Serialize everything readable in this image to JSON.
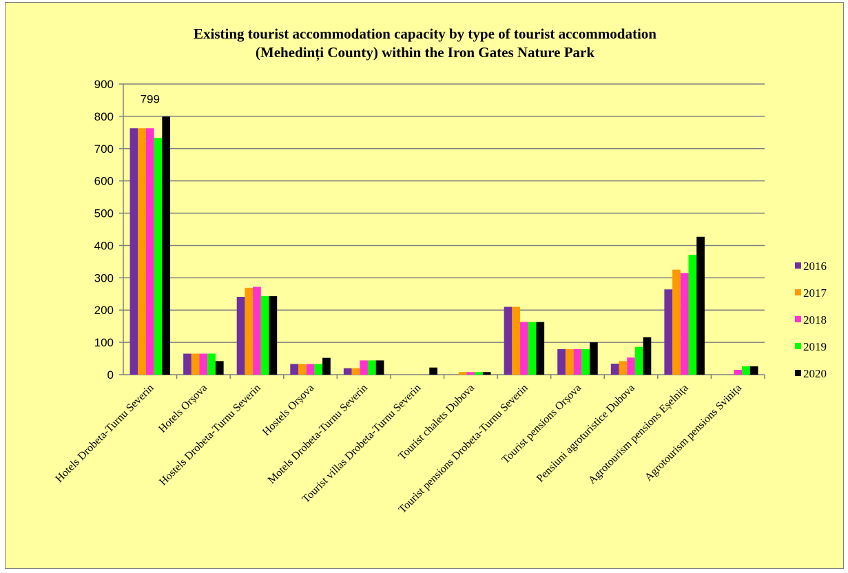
{
  "chart_data": {
    "type": "bar",
    "title_lines": [
      "Existing tourist accommodation capacity by type of tourist accommodation",
      "(Mehedinți County) within the Iron Gates Nature Park"
    ],
    "xlabel": "",
    "ylabel": "",
    "ylim": [
      0,
      900
    ],
    "yticks": [
      0,
      100,
      200,
      300,
      400,
      500,
      600,
      700,
      800,
      900
    ],
    "grid": true,
    "legend_position": "right",
    "categories": [
      "Hotels Drobeta-Turnu Severin",
      "Hotels Orșova",
      "Hostels Drobeta-Turnu Severin",
      "Hostels Orșova",
      "Motels Drobeta-Turnu Severin",
      "Tourist villas Drobeta-Turnu Severin",
      "Tourist chalets Dubova",
      "Tourist pensions Drobeta-Turnu Severin",
      "Tourist pensions Orșova",
      "Pensiuni agroturistice Dubova",
      "Agrotourism pensions Eșelnița",
      "Agrotourism pensions Svinița"
    ],
    "series": [
      {
        "name": "2016",
        "color": "#7030A0",
        "values": [
          763,
          65,
          241,
          33,
          20,
          0,
          0,
          210,
          79,
          34,
          264,
          0
        ]
      },
      {
        "name": "2017",
        "color": "#FF9900",
        "values": [
          763,
          65,
          269,
          33,
          20,
          0,
          8,
          210,
          79,
          42,
          325,
          0
        ]
      },
      {
        "name": "2018",
        "color": "#FF33CC",
        "values": [
          763,
          65,
          272,
          33,
          44,
          0,
          8,
          163,
          79,
          53,
          315,
          15
        ]
      },
      {
        "name": "2019",
        "color": "#00FF00",
        "values": [
          733,
          65,
          243,
          33,
          44,
          0,
          8,
          163,
          79,
          86,
          371,
          26
        ]
      },
      {
        "name": "2020",
        "color": "#000000",
        "values": [
          799,
          42,
          243,
          52,
          44,
          22,
          8,
          163,
          100,
          116,
          427,
          26
        ]
      }
    ],
    "annotations": [
      {
        "category": "Hotels Drobeta-Turnu Severin",
        "series": "2020",
        "text": "799"
      }
    ]
  }
}
